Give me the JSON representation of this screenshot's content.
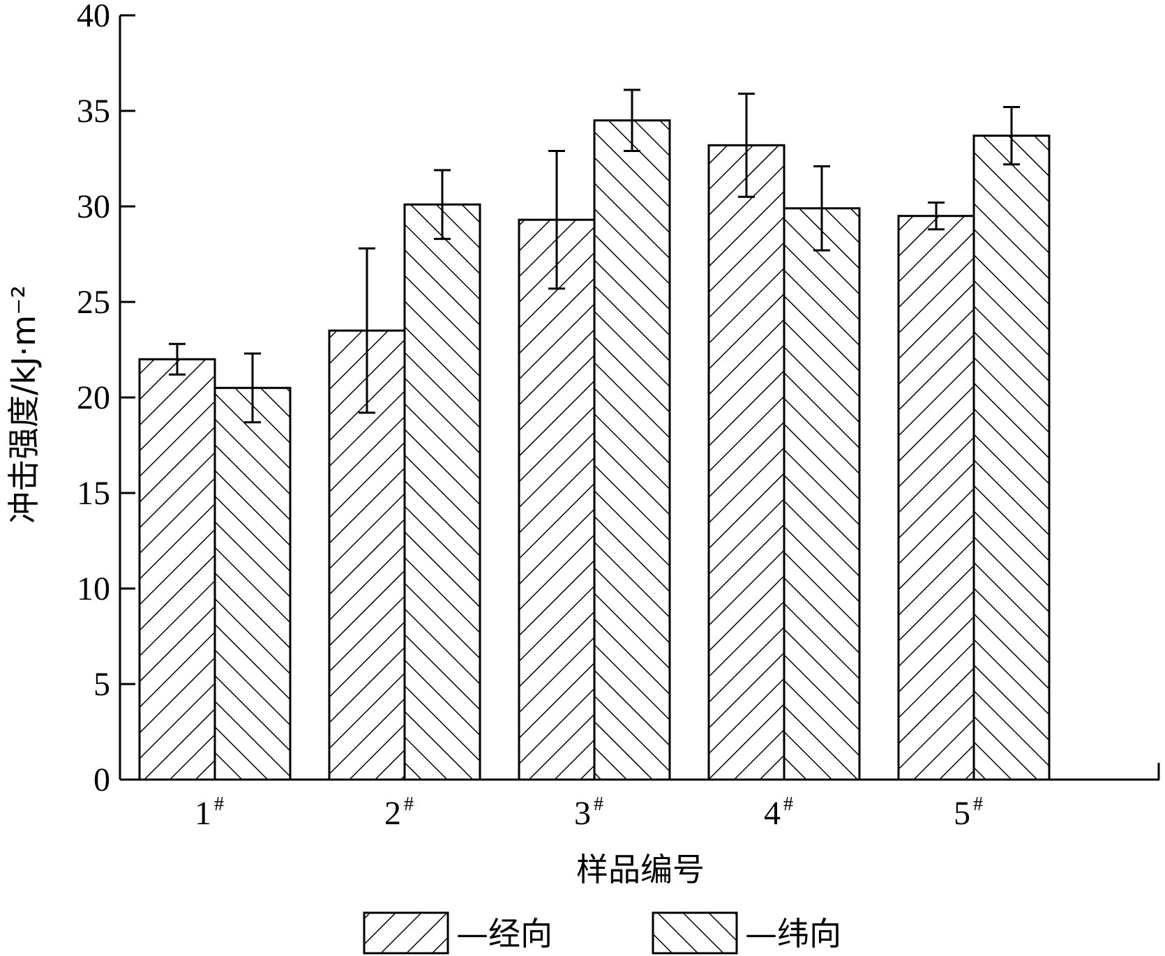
{
  "chart_data": {
    "type": "bar",
    "title": "",
    "xlabel": "样品编号",
    "ylabel": "冲击强度/kJ·m⁻²",
    "categories": [
      "1#",
      "2#",
      "3#",
      "4#",
      "5#"
    ],
    "category_labels": [
      {
        "base": "1",
        "sup": "#"
      },
      {
        "base": "2",
        "sup": "#"
      },
      {
        "base": "3",
        "sup": "#"
      },
      {
        "base": "4",
        "sup": "#"
      },
      {
        "base": "5",
        "sup": "#"
      }
    ],
    "ylim": [
      0,
      40
    ],
    "yticks": [
      0,
      5,
      10,
      15,
      20,
      25,
      30,
      35,
      40
    ],
    "grid": false,
    "legend_position": "bottom",
    "series": [
      {
        "name": "—经向",
        "pattern": "forward-hatch",
        "values": [
          22.0,
          23.5,
          29.3,
          33.2,
          29.5
        ],
        "errors": [
          0.8,
          4.3,
          3.6,
          2.7,
          0.7
        ]
      },
      {
        "name": "—纬向",
        "pattern": "back-hatch",
        "values": [
          20.5,
          30.1,
          34.5,
          29.9,
          33.7
        ],
        "errors": [
          1.8,
          1.8,
          1.6,
          2.2,
          1.5
        ]
      }
    ]
  }
}
